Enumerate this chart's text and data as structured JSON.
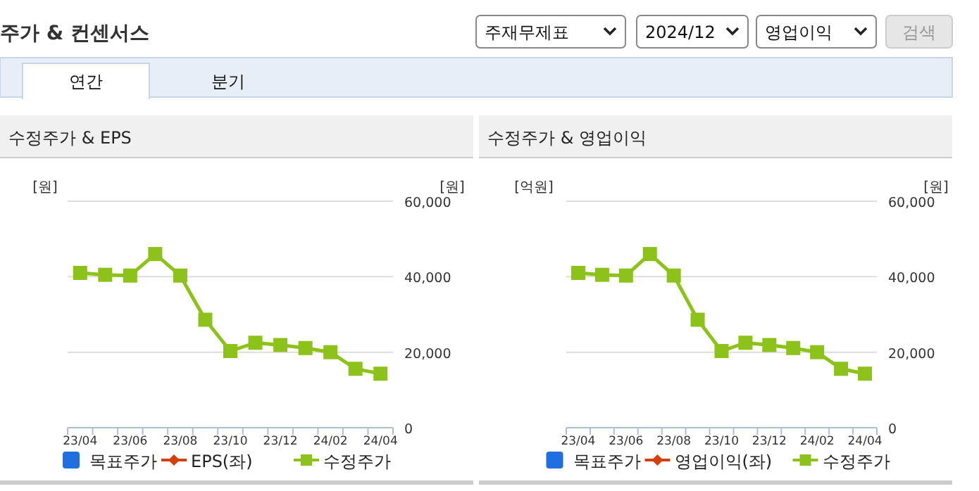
{
  "chart_data": [
    {
      "type": "other",
      "title": "주가 & 컨센서스",
      "annotations": [
        "주재무제표",
        "2024/12",
        "영업이익",
        "검색",
        "연간",
        "분기"
      ]
    },
    {
      "type": "line",
      "title": "수정주가 & EPS",
      "ylabel": "[원]",
      "y2label": "[원]",
      "categories": [
        "23/04",
        null,
        "23/06",
        null,
        "23/08",
        null,
        "23/10",
        null,
        "23/12",
        null,
        "24/02",
        null,
        "24/04"
      ],
      "y2lim": [
        0,
        60000
      ],
      "y2ticks": [
        0,
        {
          "value": 20000,
          "label": "20,000"
        },
        {
          "value": 40000,
          "label": "40,000"
        },
        {
          "value": 60000,
          "label": "60,000"
        }
      ],
      "grid": "y",
      "legend": "bottom",
      "series": [
        {
          "name": "목표주가",
          "type": "bar",
          "color": "#1f6fe0",
          "values": [
            null,
            null,
            null,
            null,
            null,
            null,
            null,
            null,
            null,
            null,
            null,
            null,
            null
          ]
        },
        {
          "name": "EPS(좌)",
          "type": "line",
          "marker": "diamond",
          "color": "#d4400c",
          "values": [
            null,
            null,
            null,
            null,
            null,
            null,
            null,
            null,
            null,
            null,
            null,
            null,
            null
          ]
        },
        {
          "name": "수정주가",
          "type": "line",
          "marker": "square",
          "axis": "y2",
          "color": "#8cc21a",
          "values": [
            41000,
            40500,
            40300,
            46000,
            40300,
            28600,
            20300,
            22500,
            21900,
            21100,
            20000,
            15600,
            14300
          ]
        }
      ]
    },
    {
      "type": "line",
      "title": "수정주가 & 영업이익",
      "ylabel": "[억원]",
      "y2label": "[원]",
      "categories": [
        "23/04",
        null,
        "23/06",
        null,
        "23/08",
        null,
        "23/10",
        null,
        "23/12",
        null,
        "24/02",
        null,
        "24/04"
      ],
      "y2lim": [
        0,
        60000
      ],
      "y2ticks": [
        0,
        {
          "value": 20000,
          "label": "20,000"
        },
        {
          "value": 40000,
          "label": "40,000"
        },
        {
          "value": 60000,
          "label": "60,000"
        }
      ],
      "grid": "y",
      "legend": "bottom",
      "series": [
        {
          "name": "목표주가",
          "type": "bar",
          "color": "#1f6fe0",
          "values": [
            null,
            null,
            null,
            null,
            null,
            null,
            null,
            null,
            null,
            null,
            null,
            null,
            null
          ]
        },
        {
          "name": "영업이익(좌)",
          "type": "line",
          "marker": "diamond",
          "color": "#d4400c",
          "values": [
            null,
            null,
            null,
            null,
            null,
            null,
            null,
            null,
            null,
            null,
            null,
            null,
            null
          ]
        },
        {
          "name": "수정주가",
          "type": "line",
          "marker": "square",
          "axis": "y2",
          "color": "#8cc21a",
          "values": [
            41000,
            40500,
            40300,
            46000,
            40300,
            28600,
            20300,
            22500,
            21900,
            21100,
            20000,
            15600,
            14300
          ]
        }
      ]
    }
  ]
}
